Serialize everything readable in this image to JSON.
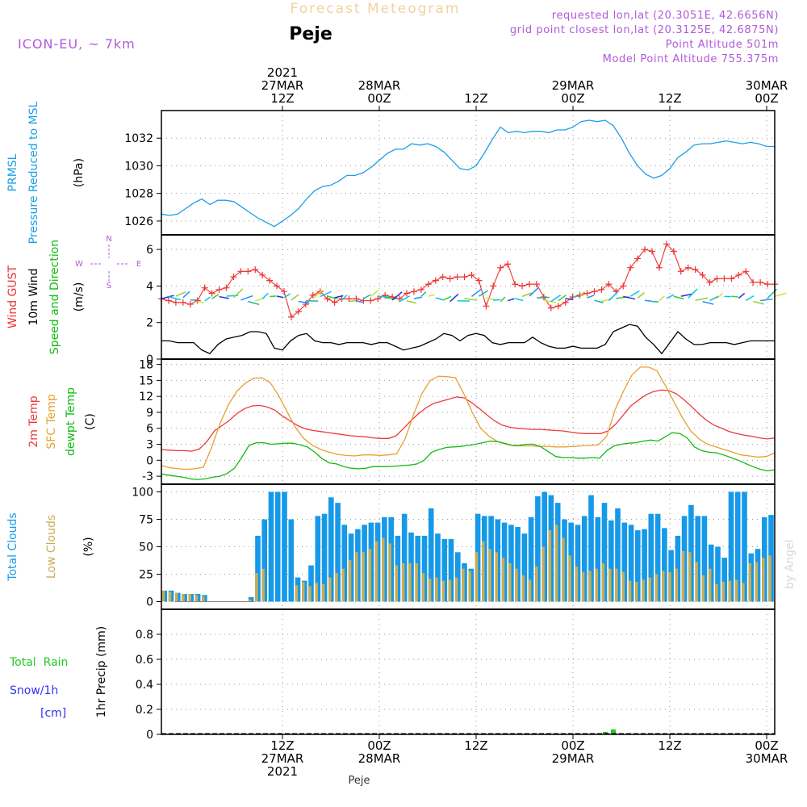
{
  "header": {
    "product_title": "Forecast Meteogram",
    "station": "Peje",
    "model": "ICON-EU, ~ 7km",
    "requested": "requested lon,lat (20.3051E, 42.6656N)",
    "grid_point": "grid point closest lon,lat (20.3125E, 42.6875N)",
    "point_altitude": "Point Altitude 501m",
    "model_altitude": "Model Point Altitude 755.375m",
    "footer_station": "Peje",
    "credit": "by Angel"
  },
  "colors": {
    "pressure": "#1a9fe8",
    "gust": "#ee3333",
    "wind": "#000000",
    "temp2m": "#ee3a3a",
    "sfc": "#e6a030",
    "dewpt": "#11bb11",
    "total_cloud": "#1599e8",
    "low_cloud": "#c9ac55",
    "rain": "#22cc22",
    "snow": "#3333ee",
    "meta": "#b05ad8",
    "title": "#f2d29e"
  },
  "time_axis": {
    "top_labels": [
      {
        "t": 15,
        "lines": [
          "2021",
          "27MAR",
          "12Z"
        ]
      },
      {
        "t": 27,
        "lines": [
          "28MAR",
          "00Z"
        ]
      },
      {
        "t": 39,
        "lines": [
          "12Z"
        ]
      },
      {
        "t": 51,
        "lines": [
          "29MAR",
          "00Z"
        ]
      },
      {
        "t": 63,
        "lines": [
          "12Z"
        ]
      },
      {
        "t": 75,
        "lines": [
          "30MAR",
          "00Z"
        ]
      }
    ],
    "bottom_labels": [
      {
        "t": 15,
        "lines": [
          "12Z",
          "27MAR",
          "2021"
        ]
      },
      {
        "t": 27,
        "lines": [
          "00Z",
          "28MAR"
        ]
      },
      {
        "t": 39,
        "lines": [
          "12Z"
        ]
      },
      {
        "t": 51,
        "lines": [
          "00Z",
          "29MAR"
        ]
      },
      {
        "t": 63,
        "lines": [
          "12Z"
        ]
      },
      {
        "t": 75,
        "lines": [
          "00Z",
          "30MAR"
        ]
      }
    ]
  },
  "compass": {
    "n": "N",
    "s": "S",
    "w": "W",
    "e": "E"
  },
  "chart_data": [
    {
      "type": "line",
      "id": "pressure",
      "title": "Pressure Reduced to MSL",
      "ylabel_lines": [
        {
          "text": "PRMSL",
          "color": "pressure"
        },
        {
          "text": "Pressure Reduced to MSL",
          "color": "pressure"
        },
        {
          "text": "(hPa)",
          "color": "wind"
        }
      ],
      "ylim": [
        1025,
        1034
      ],
      "yticks": [
        1026,
        1028,
        1030,
        1032
      ],
      "x_hours": [
        0,
        1,
        2,
        3,
        4,
        5,
        6,
        7,
        8,
        9,
        10,
        11,
        12,
        13,
        14,
        15,
        16,
        17,
        18,
        19,
        20,
        21,
        22,
        23,
        24,
        25,
        26,
        27,
        28,
        29,
        30,
        31,
        32,
        33,
        34,
        35,
        36,
        37,
        38,
        39,
        40,
        41,
        42,
        43,
        44,
        45,
        46,
        47,
        48,
        49,
        50,
        51,
        52,
        53,
        54,
        55,
        56,
        57,
        58,
        59,
        60,
        61,
        62,
        63,
        64,
        65,
        66,
        67,
        68,
        69,
        70,
        71,
        72,
        73,
        74,
        75,
        76
      ],
      "values": [
        1026.5,
        1026.4,
        1026.5,
        1026.9,
        1027.3,
        1027.6,
        1027.2,
        1027.5,
        1027.5,
        1027.4,
        1027.0,
        1026.6,
        1026.2,
        1025.9,
        1025.6,
        1026.0,
        1026.4,
        1026.9,
        1027.6,
        1028.2,
        1028.5,
        1028.6,
        1028.9,
        1029.3,
        1029.3,
        1029.5,
        1029.9,
        1030.4,
        1030.9,
        1031.2,
        1031.2,
        1031.6,
        1031.5,
        1031.6,
        1031.4,
        1031.0,
        1030.4,
        1029.8,
        1029.7,
        1030.0,
        1030.9,
        1031.9,
        1032.8,
        1032.4,
        1032.5,
        1032.4,
        1032.5,
        1032.5,
        1032.4,
        1032.6,
        1032.6,
        1032.8,
        1033.2,
        1033.3,
        1033.2,
        1033.3,
        1032.9,
        1032.0,
        1030.9,
        1030.0,
        1029.4,
        1029.1,
        1029.3,
        1029.8,
        1030.6,
        1031.0,
        1031.5,
        1031.6,
        1031.6,
        1031.7,
        1031.8,
        1031.7,
        1031.6,
        1031.7,
        1031.6,
        1031.4,
        1031.4
      ]
    },
    {
      "type": "line",
      "id": "wind",
      "title": "Wind GUST / 10m Wind Speed and Direction",
      "ylabel_lines": [
        {
          "text": "Wind GUST",
          "color": "gust"
        },
        {
          "text": "10m Wind",
          "color": "wind"
        },
        {
          "text": "Speed and Direction",
          "color": "dewpt"
        },
        {
          "text": "(m/s)",
          "color": "wind"
        }
      ],
      "ylim": [
        0,
        6.8
      ],
      "yticks": [
        0,
        2,
        4,
        6
      ],
      "series": [
        {
          "name": "Wind GUST",
          "values": [
            3.3,
            3.2,
            3.1,
            3.1,
            3.0,
            3.2,
            3.9,
            3.6,
            3.8,
            3.9,
            4.5,
            4.8,
            4.8,
            4.9,
            4.6,
            4.3,
            4.0,
            3.7,
            2.3,
            2.6,
            3.0,
            3.5,
            3.7,
            3.3,
            3.1,
            3.3,
            3.3,
            3.3,
            3.2,
            3.2,
            3.3,
            3.5,
            3.4,
            3.3,
            3.6,
            3.7,
            3.8,
            4.1,
            4.3,
            4.5,
            4.4,
            4.5,
            4.5,
            4.6,
            4.3,
            2.9,
            4.0,
            5.0,
            5.2,
            4.1,
            4.0,
            4.1,
            4.1,
            3.4,
            2.8,
            2.9,
            3.1,
            3.4,
            3.5,
            3.6,
            3.7,
            3.8,
            4.1,
            3.7,
            4.0,
            5.0,
            5.5,
            6.0,
            5.9,
            5.0,
            6.3,
            5.9,
            4.8,
            5.0,
            4.9,
            4.6,
            4.2,
            4.4,
            4.4,
            4.4,
            4.6,
            4.8,
            4.2,
            4.2,
            4.1,
            4.1
          ]
        },
        {
          "name": "10m Wind",
          "values": [
            1.0,
            1.0,
            0.9,
            0.9,
            0.9,
            0.5,
            0.3,
            0.8,
            1.1,
            1.2,
            1.3,
            1.5,
            1.5,
            1.4,
            0.6,
            0.5,
            1.0,
            1.3,
            1.4,
            1.0,
            0.9,
            0.9,
            0.8,
            0.9,
            0.9,
            0.9,
            0.8,
            0.9,
            0.9,
            0.7,
            0.5,
            0.6,
            0.7,
            0.9,
            1.1,
            1.4,
            1.3,
            1.0,
            1.3,
            1.4,
            1.3,
            0.9,
            0.8,
            0.9,
            0.9,
            0.9,
            1.2,
            0.9,
            0.7,
            0.6,
            0.6,
            0.7,
            0.6,
            0.6,
            0.6,
            0.8,
            1.5,
            1.7,
            1.9,
            1.8,
            1.2,
            0.8,
            0.3,
            0.9,
            1.5,
            1.1,
            0.8,
            0.8,
            0.9,
            0.9,
            0.9,
            0.8,
            0.9,
            1.0,
            1.0,
            1.0,
            1.0
          ]
        }
      ],
      "arrow_colors": [
        "#2a2ae8",
        "#1e90ff",
        "#00bfff",
        "#00ced1",
        "#20b2aa",
        "#32cd32",
        "#9acd32",
        "#c8e632"
      ]
    },
    {
      "type": "line",
      "id": "temperature",
      "title": "2m Temp / SFC Temp / dewpt Temp",
      "ylabel_lines": [
        {
          "text": "2m Temp",
          "color": "temp2m"
        },
        {
          "text": "SFC Temp",
          "color": "sfc"
        },
        {
          "text": "dewpt Temp",
          "color": "dewpt"
        },
        {
          "text": "(C)",
          "color": "wind"
        }
      ],
      "ylim": [
        -4.5,
        19
      ],
      "yticks": [
        -3,
        0,
        3,
        6,
        9,
        12,
        15,
        18
      ],
      "series": [
        {
          "name": "2m Temp",
          "values": [
            2.0,
            1.9,
            1.8,
            1.8,
            1.7,
            2.1,
            3.5,
            5.5,
            6.5,
            7.5,
            8.8,
            9.7,
            10.2,
            10.3,
            10.0,
            9.4,
            8.3,
            7.4,
            6.5,
            5.9,
            5.6,
            5.4,
            5.2,
            5.0,
            4.8,
            4.6,
            4.5,
            4.4,
            4.2,
            4.1,
            4.1,
            4.6,
            6.0,
            7.5,
            8.8,
            9.9,
            10.7,
            11.1,
            11.5,
            11.9,
            11.7,
            10.8,
            9.7,
            8.5,
            7.4,
            6.6,
            6.2,
            6.0,
            5.9,
            5.8,
            5.8,
            5.7,
            5.6,
            5.5,
            5.3,
            5.1,
            5.0,
            5.0,
            5.0,
            5.5,
            6.8,
            8.5,
            10.2,
            11.3,
            12.3,
            12.9,
            13.2,
            13.1,
            12.5,
            11.4,
            10.1,
            8.7,
            7.5,
            6.6,
            6.0,
            5.4,
            5.0,
            4.7,
            4.5,
            4.2,
            4.0,
            4.2
          ]
        },
        {
          "name": "SFC Temp",
          "values": [
            -1.0,
            -1.4,
            -1.6,
            -1.7,
            -1.6,
            -1.3,
            2.5,
            7.0,
            10.5,
            13.0,
            14.5,
            15.4,
            15.5,
            14.5,
            12.0,
            9.0,
            6.0,
            4.0,
            2.8,
            2.0,
            1.5,
            1.1,
            0.9,
            0.8,
            1.0,
            1.0,
            0.9,
            1.0,
            1.2,
            4.0,
            8.5,
            12.5,
            15.0,
            15.8,
            15.7,
            15.5,
            12.5,
            9.0,
            6.0,
            4.5,
            3.5,
            3.0,
            2.7,
            2.7,
            2.7,
            2.6,
            2.6,
            2.5,
            2.5,
            2.6,
            2.7,
            2.8,
            2.9,
            4.5,
            9.5,
            13.0,
            16.0,
            17.5,
            17.5,
            16.8,
            14.0,
            11.0,
            8.0,
            5.5,
            4.0,
            3.0,
            2.5,
            2.0,
            1.5,
            1.0,
            0.8,
            0.6,
            0.7,
            1.4
          ]
        },
        {
          "name": "dewpt Temp",
          "values": [
            -2.6,
            -2.8,
            -3.0,
            -3.2,
            -3.5,
            -3.6,
            -3.5,
            -3.2,
            -3.0,
            -2.5,
            -1.5,
            0.5,
            2.8,
            3.3,
            3.3,
            3.0,
            3.1,
            3.2,
            3.2,
            2.9,
            2.5,
            1.5,
            0.3,
            -0.5,
            -0.7,
            -1.2,
            -1.5,
            -1.6,
            -1.5,
            -1.2,
            -1.2,
            -1.2,
            -1.1,
            -1.0,
            -0.9,
            -0.7,
            0.0,
            1.5,
            2.0,
            2.4,
            2.5,
            2.6,
            2.8,
            3.0,
            3.3,
            3.6,
            3.5,
            3.2,
            2.8,
            2.8,
            3.0,
            3.0,
            2.5,
            1.6,
            0.7,
            0.5,
            0.5,
            0.4,
            0.4,
            0.5,
            0.4,
            1.8,
            2.7,
            3.0,
            3.2,
            3.3,
            3.6,
            3.8,
            3.6,
            4.4,
            5.2,
            5.0,
            4.2,
            2.5,
            1.8,
            1.5,
            1.4,
            1.0,
            0.5,
            0.0,
            -0.6,
            -1.2,
            -1.7,
            -2.0,
            -1.8
          ]
        }
      ]
    },
    {
      "type": "bar",
      "id": "clouds",
      "title": "Total Clouds / Low Clouds",
      "ylabel_lines": [
        {
          "text": "Total Clouds",
          "color": "total_cloud"
        },
        {
          "text": "Low Clouds",
          "color": "low_cloud"
        },
        {
          "text": "(%)",
          "color": "wind"
        }
      ],
      "ylim": [
        -7,
        107
      ],
      "yticks": [
        0,
        25,
        50,
        75,
        100
      ],
      "series": [
        {
          "name": "Total Clouds",
          "values": [
            10,
            10,
            8,
            7,
            7,
            7,
            6,
            0,
            0,
            0,
            0,
            0,
            0,
            4,
            60,
            75,
            100,
            100,
            100,
            75,
            22,
            19,
            33,
            78,
            80,
            95,
            90,
            70,
            62,
            66,
            70,
            72,
            72,
            77,
            77,
            60,
            80,
            63,
            60,
            60,
            85,
            62,
            57,
            57,
            45,
            35,
            30,
            80,
            78,
            78,
            75,
            72,
            70,
            68,
            62,
            77,
            96,
            100,
            97,
            90,
            75,
            72,
            70,
            78,
            97,
            77,
            90,
            74,
            85,
            72,
            70,
            65,
            66,
            80,
            80,
            67,
            47,
            60,
            78,
            88,
            78,
            78,
            52,
            50,
            40,
            100,
            100,
            100,
            44,
            48,
            77,
            79
          ]
        },
        {
          "name": "Low Clouds",
          "values": [
            10,
            9,
            8,
            7,
            7,
            6,
            5,
            0,
            0,
            0,
            0,
            0,
            0,
            2,
            26,
            30,
            0,
            0,
            0,
            0,
            15,
            18,
            14,
            17,
            16,
            22,
            26,
            30,
            38,
            45,
            45,
            48,
            55,
            58,
            53,
            33,
            35,
            35,
            35,
            26,
            21,
            22,
            19,
            20,
            22,
            30,
            28,
            45,
            55,
            48,
            45,
            40,
            35,
            30,
            24,
            20,
            32,
            50,
            65,
            70,
            58,
            42,
            32,
            27,
            28,
            30,
            35,
            30,
            30,
            27,
            19,
            18,
            20,
            22,
            25,
            28,
            27,
            30,
            46,
            45,
            36,
            24,
            30,
            16,
            18,
            19,
            20,
            17,
            35,
            36,
            40,
            42
          ]
        }
      ]
    },
    {
      "type": "bar",
      "id": "precip",
      "title": "1hr Precip",
      "ylabel_lines": [
        {
          "text": "1hr Precip (mm)",
          "color": "wind"
        }
      ],
      "legend": [
        {
          "text": "Total  Rain",
          "color": "rain"
        },
        {
          "text": "Snow/1h",
          "color": "snow"
        },
        {
          "text": "[cm]",
          "color": "snow"
        }
      ],
      "ylim": [
        0,
        1.0
      ],
      "yticks": [
        0,
        0.2,
        0.4,
        0.6,
        0.8
      ],
      "ytick_labels": [
        "0",
        "0.2",
        "0.4",
        "0.6",
        "0.8"
      ],
      "series": [
        {
          "name": "Total Rain",
          "x_hours": [
            55,
            56
          ],
          "values": [
            0.02,
            0.04
          ]
        }
      ]
    }
  ]
}
